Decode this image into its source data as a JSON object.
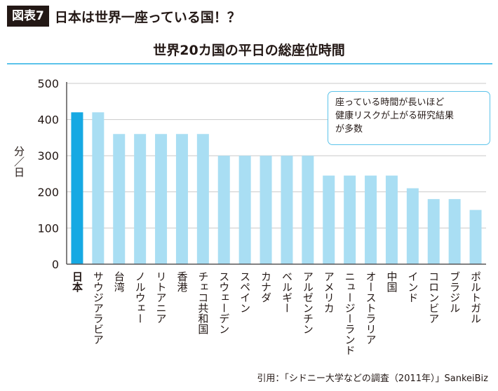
{
  "header": {
    "figure_label": "図表7",
    "headline": "日本は世界一座っている国！？"
  },
  "chart_data": {
    "type": "bar",
    "title": "世界20カ国の平日の総座位時間",
    "ylabel": "分／日",
    "xlabel": "",
    "ylim": [
      0,
      500
    ],
    "yticks": [
      0,
      100,
      200,
      300,
      400,
      500
    ],
    "grid": true,
    "categories": [
      "日本",
      "サウジアラビア",
      "台湾",
      "ノルウェー",
      "リトアニア",
      "香港",
      "チェコ共和国",
      "スウェーデン",
      "スペイン",
      "カナダ",
      "ベルギー",
      "アルゼンチン",
      "アメリカ",
      "ニュージーランド",
      "オーストラリア",
      "中国",
      "インド",
      "コロンビア",
      "ブラジル",
      "ポルトガル"
    ],
    "values": [
      420,
      420,
      360,
      360,
      360,
      360,
      360,
      300,
      300,
      300,
      300,
      300,
      245,
      245,
      245,
      245,
      210,
      180,
      180,
      150
    ],
    "highlight_index": 0,
    "colors": {
      "highlight": "#16a9e3",
      "bar": "#a9def3",
      "grid": "#c9caca",
      "axis": "#595757",
      "accent": "#5bc3ea"
    }
  },
  "annotation": {
    "lines": [
      "座っている時間が長いほど",
      "健康リスクが上がる研究結果",
      "が多数"
    ]
  },
  "source": "引用：「シドニー大学などの調査（2011年）」SankeiBiz"
}
